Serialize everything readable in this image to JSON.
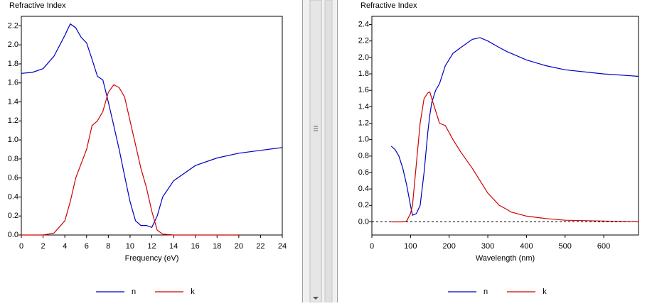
{
  "chart_data": [
    {
      "type": "line",
      "title": "Refractive Index",
      "xlabel": "Frequency (eV)",
      "x": [
        0,
        1,
        2,
        3,
        4,
        4.5,
        5,
        5.5,
        6,
        6.5,
        7,
        7.5,
        8,
        8.5,
        9,
        9.5,
        10,
        10.5,
        11,
        11.5,
        12,
        12.5,
        13,
        14,
        16,
        18,
        20,
        22,
        24
      ],
      "series": [
        {
          "name": "n",
          "color": "#0000c0",
          "values": [
            1.7,
            1.71,
            1.75,
            1.88,
            2.1,
            2.22,
            2.18,
            2.08,
            2.02,
            1.85,
            1.67,
            1.63,
            1.4,
            1.15,
            0.9,
            0.62,
            0.35,
            0.15,
            0.1,
            0.1,
            0.08,
            0.2,
            0.4,
            0.57,
            0.73,
            0.81,
            0.86,
            0.89,
            0.92
          ]
        },
        {
          "name": "k",
          "color": "#d00000",
          "values": [
            0,
            0,
            0,
            0.02,
            0.15,
            0.35,
            0.6,
            0.75,
            0.9,
            1.15,
            1.2,
            1.3,
            1.5,
            1.58,
            1.55,
            1.45,
            1.2,
            0.95,
            0.7,
            0.5,
            0.25,
            0.05,
            0.01,
            0,
            0,
            0,
            0,
            null,
            null
          ]
        }
      ],
      "xlim": [
        0,
        24
      ],
      "ylim": [
        0,
        2.3
      ],
      "xticks": [
        0,
        2,
        4,
        6,
        8,
        10,
        12,
        14,
        16,
        18,
        20,
        22,
        24
      ],
      "yticks": [
        {
          "value": 0,
          "label": "0.0"
        },
        {
          "value": 0.2,
          "label": "0.2"
        },
        {
          "value": 0.4,
          "label": "0.4"
        },
        {
          "value": 0.6,
          "label": "0.6"
        },
        {
          "value": 0.8,
          "label": "0.8"
        },
        {
          "value": 1,
          "label": "1.0"
        },
        {
          "value": 1.2,
          "label": "1.2"
        },
        {
          "value": 1.4,
          "label": "1.4"
        },
        {
          "value": 1.6,
          "label": "1.6"
        },
        {
          "value": 1.8,
          "label": "1.8"
        },
        {
          "value": 2,
          "label": "2.0"
        },
        {
          "value": 2.2,
          "label": "2.2"
        }
      ],
      "zero_line": false,
      "legend": "bottom"
    },
    {
      "type": "line",
      "title": "Refractive Index",
      "xlabel": "Wavelength (nm)",
      "x": [
        50,
        60,
        70,
        80,
        90,
        100,
        105,
        115,
        125,
        135,
        145,
        150,
        155,
        165,
        175,
        190,
        210,
        230,
        260,
        280,
        300,
        330,
        350,
        360,
        400,
        450,
        500,
        600,
        690
      ],
      "series": [
        {
          "name": "n",
          "color": "#0000c0",
          "values": [
            0.92,
            0.88,
            0.8,
            0.65,
            0.45,
            0.2,
            0.08,
            0.1,
            0.2,
            0.6,
            1.1,
            1.3,
            1.45,
            1.6,
            1.68,
            1.9,
            2.05,
            2.12,
            2.22,
            2.24,
            2.2,
            2.12,
            2.07,
            2.05,
            1.97,
            1.9,
            1.85,
            1.8,
            1.77
          ]
        },
        {
          "name": "k",
          "color": "#d00000",
          "values": [
            0,
            0,
            0,
            0,
            0.01,
            0.1,
            0.2,
            0.7,
            1.2,
            1.5,
            1.57,
            1.58,
            1.5,
            1.35,
            1.2,
            1.17,
            1,
            0.85,
            0.65,
            0.5,
            0.35,
            0.2,
            0.15,
            0.12,
            0.07,
            0.04,
            0.02,
            0.01,
            0
          ]
        }
      ],
      "xlim": [
        0,
        690
      ],
      "ylim": [
        -0.16,
        2.5
      ],
      "xticks": [
        0,
        100,
        200,
        300,
        400,
        500,
        600
      ],
      "yticks": [
        {
          "value": 0,
          "label": "0.0"
        },
        {
          "value": 0.2,
          "label": "0.2"
        },
        {
          "value": 0.4,
          "label": "0.4"
        },
        {
          "value": 0.6,
          "label": "0.6"
        },
        {
          "value": 0.8,
          "label": "0.8"
        },
        {
          "value": 1,
          "label": "1.0"
        },
        {
          "value": 1.2,
          "label": "1.2"
        },
        {
          "value": 1.4,
          "label": "1.4"
        },
        {
          "value": 1.6,
          "label": "1.6"
        },
        {
          "value": 1.8,
          "label": "1.8"
        },
        {
          "value": 2,
          "label": "2.0"
        },
        {
          "value": 2.2,
          "label": "2.2"
        },
        {
          "value": 2.4,
          "label": "2.4"
        }
      ],
      "zero_line": true,
      "legend": "bottom"
    }
  ]
}
